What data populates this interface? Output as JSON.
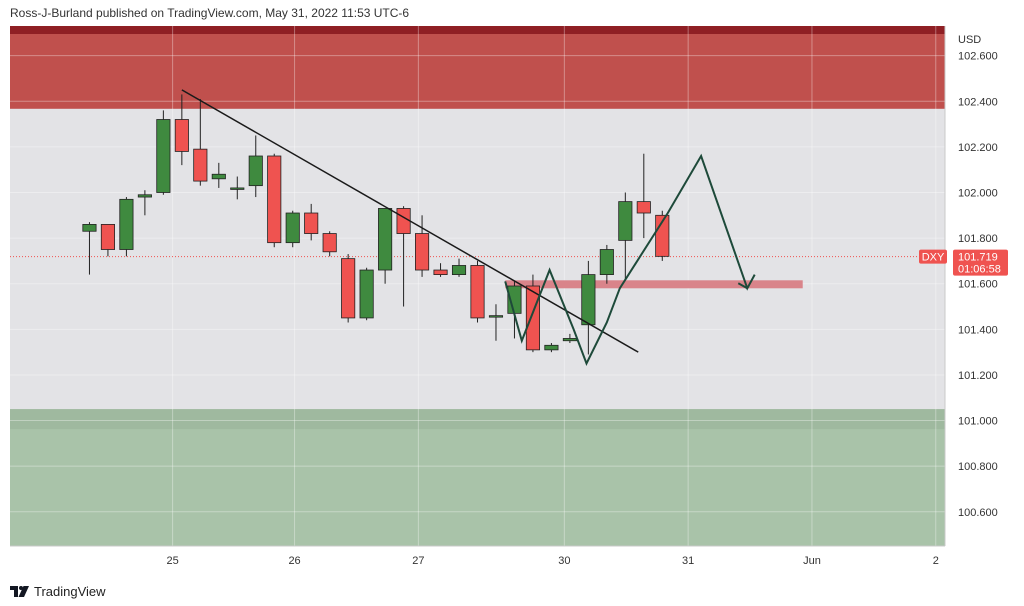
{
  "header": {
    "publisher_text": "Ross-J-Burland published on TradingView.com, May 31, 2022 11:53 UTC-6"
  },
  "footer": {
    "brand": "TradingView",
    "logo_icon": "tradingview-logo-icon"
  },
  "chart_data": {
    "type": "candlestick",
    "currency_label": "USD",
    "y_range": [
      100.45,
      102.73
    ],
    "y_ticks": [
      {
        "value": 102.6,
        "label": "102.600"
      },
      {
        "value": 102.4,
        "label": "102.400"
      },
      {
        "value": 102.2,
        "label": "102.200"
      },
      {
        "value": 102.0,
        "label": "102.000"
      },
      {
        "value": 101.8,
        "label": "101.800"
      },
      {
        "value": 101.6,
        "label": "101.600"
      },
      {
        "value": 101.4,
        "label": "101.400"
      },
      {
        "value": 101.2,
        "label": "101.200"
      },
      {
        "value": 101.0,
        "label": "101.000"
      },
      {
        "value": 100.8,
        "label": "100.800"
      },
      {
        "value": 100.6,
        "label": "100.600"
      }
    ],
    "x_range": [
      -4.3,
      46.3
    ],
    "x_ticks": [
      {
        "index": 4.5,
        "label": "25"
      },
      {
        "index": 11.1,
        "label": "26"
      },
      {
        "index": 17.8,
        "label": "27"
      },
      {
        "index": 25.7,
        "label": "30"
      },
      {
        "index": 32.4,
        "label": "31"
      },
      {
        "index": 39.1,
        "label": "Jun"
      },
      {
        "index": 45.8,
        "label": "2"
      }
    ],
    "candles": [
      {
        "o": 101.83,
        "h": 101.87,
        "l": 101.64,
        "c": 101.86
      },
      {
        "o": 101.86,
        "h": 101.85,
        "l": 101.72,
        "c": 101.75
      },
      {
        "o": 101.75,
        "h": 101.98,
        "l": 101.72,
        "c": 101.97
      },
      {
        "o": 101.98,
        "h": 102.01,
        "l": 101.9,
        "c": 101.99
      },
      {
        "o": 102.0,
        "h": 102.36,
        "l": 101.99,
        "c": 102.32
      },
      {
        "o": 102.32,
        "h": 102.43,
        "l": 102.12,
        "c": 102.18
      },
      {
        "o": 102.19,
        "h": 102.41,
        "l": 102.03,
        "c": 102.05
      },
      {
        "o": 102.06,
        "h": 102.13,
        "l": 102.02,
        "c": 102.08
      },
      {
        "o": 102.02,
        "h": 102.07,
        "l": 101.97,
        "c": 102.02
      },
      {
        "o": 102.03,
        "h": 102.25,
        "l": 101.98,
        "c": 102.16
      },
      {
        "o": 102.16,
        "h": 102.17,
        "l": 101.76,
        "c": 101.78
      },
      {
        "o": 101.78,
        "h": 101.92,
        "l": 101.76,
        "c": 101.91
      },
      {
        "o": 101.91,
        "h": 101.95,
        "l": 101.79,
        "c": 101.82
      },
      {
        "o": 101.82,
        "h": 101.83,
        "l": 101.72,
        "c": 101.74
      },
      {
        "o": 101.71,
        "h": 101.73,
        "l": 101.43,
        "c": 101.45
      },
      {
        "o": 101.45,
        "h": 101.67,
        "l": 101.44,
        "c": 101.66
      },
      {
        "o": 101.66,
        "h": 101.93,
        "l": 101.6,
        "c": 101.93
      },
      {
        "o": 101.93,
        "h": 101.94,
        "l": 101.5,
        "c": 101.82
      },
      {
        "o": 101.82,
        "h": 101.9,
        "l": 101.63,
        "c": 101.66
      },
      {
        "o": 101.66,
        "h": 101.69,
        "l": 101.63,
        "c": 101.64
      },
      {
        "o": 101.64,
        "h": 101.71,
        "l": 101.63,
        "c": 101.68
      },
      {
        "o": 101.68,
        "h": 101.7,
        "l": 101.43,
        "c": 101.45
      },
      {
        "o": 101.46,
        "h": 101.51,
        "l": 101.35,
        "c": 101.46
      },
      {
        "o": 101.47,
        "h": 101.61,
        "l": 101.36,
        "c": 101.59
      },
      {
        "o": 101.59,
        "h": 101.64,
        "l": 101.3,
        "c": 101.31
      },
      {
        "o": 101.31,
        "h": 101.34,
        "l": 101.3,
        "c": 101.33
      },
      {
        "o": 101.35,
        "h": 101.38,
        "l": 101.34,
        "c": 101.36
      },
      {
        "o": 101.42,
        "h": 101.7,
        "l": 101.29,
        "c": 101.64
      },
      {
        "o": 101.64,
        "h": 101.77,
        "l": 101.6,
        "c": 101.75
      },
      {
        "o": 101.79,
        "h": 102.0,
        "l": 101.62,
        "c": 101.96
      },
      {
        "o": 101.96,
        "h": 102.17,
        "l": 101.8,
        "c": 101.91
      },
      {
        "o": 101.9,
        "h": 101.92,
        "l": 101.7,
        "c": 101.72
      }
    ],
    "current_price": {
      "symbol": "DXY",
      "value": 101.719,
      "label": "101.719",
      "countdown": "01:06:58"
    },
    "zones": [
      {
        "name": "resistance-zone",
        "from": 102.367,
        "to": 102.73,
        "color": "#c0504d"
      },
      {
        "name": "support-zone",
        "from": 100.45,
        "to": 101.05,
        "color": "#a9c3a9"
      }
    ],
    "trendline": {
      "from": {
        "index": 5,
        "value": 102.45
      },
      "to": {
        "index": 29.7,
        "value": 101.3
      }
    },
    "pattern_path": [
      {
        "index": 22.5,
        "value": 101.61
      },
      {
        "index": 23.4,
        "value": 101.35
      },
      {
        "index": 24.9,
        "value": 101.66
      },
      {
        "index": 26.2,
        "value": 101.4
      },
      {
        "index": 26.9,
        "value": 101.25
      },
      {
        "index": 28.0,
        "value": 101.43
      },
      {
        "index": 28.7,
        "value": 101.58
      },
      {
        "index": 31.3,
        "value": 101.91
      },
      {
        "index": 33.1,
        "value": 102.16
      },
      {
        "index": 35.6,
        "value": 101.58
      },
      {
        "index": 36.0,
        "value": 101.64
      }
    ],
    "horizontal_band": {
      "from_index": 22.5,
      "to_index": 38.6,
      "value_low": 101.585,
      "value_high": 101.615
    },
    "colors": {
      "up": "#3f8a3f",
      "down": "#ef5350",
      "trendline": "#1a1a1a",
      "pattern": "#1e4a3a",
      "band": "#d9848a",
      "price_label": "#ef5350"
    },
    "grid": true
  }
}
